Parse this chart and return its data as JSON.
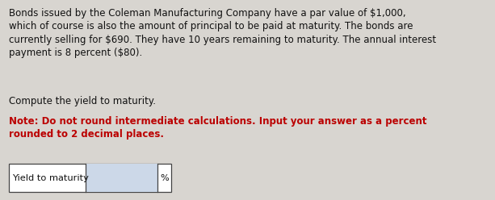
{
  "background_color": "#d8d5d0",
  "paragraph1": "Bonds issued by the Coleman Manufacturing Company have a par value of $1,000,\nwhich of course is also the amount of principal to be paid at maturity. The bonds are\ncurrently selling for $690. They have 10 years remaining to maturity. The annual interest\npayment is 8 percent ($80).",
  "paragraph2_normal": "Compute the yield to maturity.",
  "paragraph2_bold_red": "Note: Do not round intermediate calculations. Input your answer as a percent\nrounded to 2 decimal places.",
  "label_text": "Yield to maturity",
  "percent_symbol": "%",
  "text_color_normal": "#111111",
  "text_color_red": "#bb0000",
  "font_size_main": 8.5,
  "font_size_label": 8.2
}
